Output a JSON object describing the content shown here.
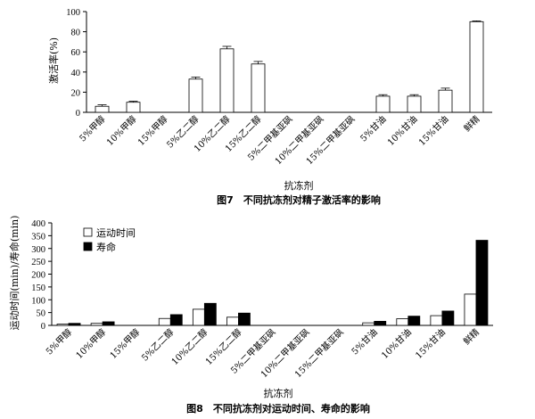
{
  "chart_data": [
    {
      "type": "bar",
      "title": "图7　不同抗冻剂对精子激活率的影响",
      "xlabel": "抗冻剂",
      "ylabel": "激活率(%)",
      "ylim": [
        0,
        100
      ],
      "yticks": [
        0,
        20,
        40,
        60,
        80,
        100
      ],
      "grid": false,
      "error_bars": true,
      "categories": [
        "5%甲醇",
        "10%甲醇",
        "15%甲醇",
        "5%乙二醇",
        "10%乙二醇",
        "15%乙二醇",
        "5%二甲基亚砜",
        "10%二甲基亚砜",
        "15%二甲基亚砜",
        "5%甘油",
        "10%甘油",
        "15%甘油",
        "鲜精"
      ],
      "values": [
        6,
        10,
        0,
        33,
        63,
        48,
        0,
        0,
        0,
        16,
        16,
        22,
        90
      ],
      "errors": [
        1.5,
        1,
        0,
        2,
        2.5,
        2.5,
        0,
        0,
        0,
        1.5,
        1.5,
        2,
        0.8
      ],
      "fill": "#ffffff"
    },
    {
      "type": "bar",
      "title": "图8　不同抗冻剂对运动时间、寿命的影响",
      "xlabel": "抗冻剂",
      "ylabel": "运动时间(min)/寿命(min)",
      "ylim": [
        0,
        400
      ],
      "yticks": [
        0,
        50,
        100,
        150,
        200,
        250,
        300,
        350,
        400
      ],
      "grid": false,
      "legend_position": "top-left",
      "categories": [
        "5%甲醇",
        "10%甲醇",
        "15%甲醇",
        "5%乙二醇",
        "10%乙二醇",
        "15%乙二醇",
        "5%二甲基亚砜",
        "10%二甲基亚砜",
        "15%二甲基亚砜",
        "5%甘油",
        "10%甘油",
        "15%甘油",
        "鲜精"
      ],
      "series": [
        {
          "name": "运动时间",
          "color": "#ffffff",
          "values": [
            5,
            8,
            0,
            27,
            63,
            32,
            0,
            0,
            0,
            10,
            26,
            38,
            122
          ]
        },
        {
          "name": "寿命",
          "color": "#000000",
          "values": [
            8,
            14,
            0,
            42,
            86,
            48,
            0,
            0,
            0,
            16,
            36,
            56,
            332
          ]
        }
      ]
    }
  ]
}
